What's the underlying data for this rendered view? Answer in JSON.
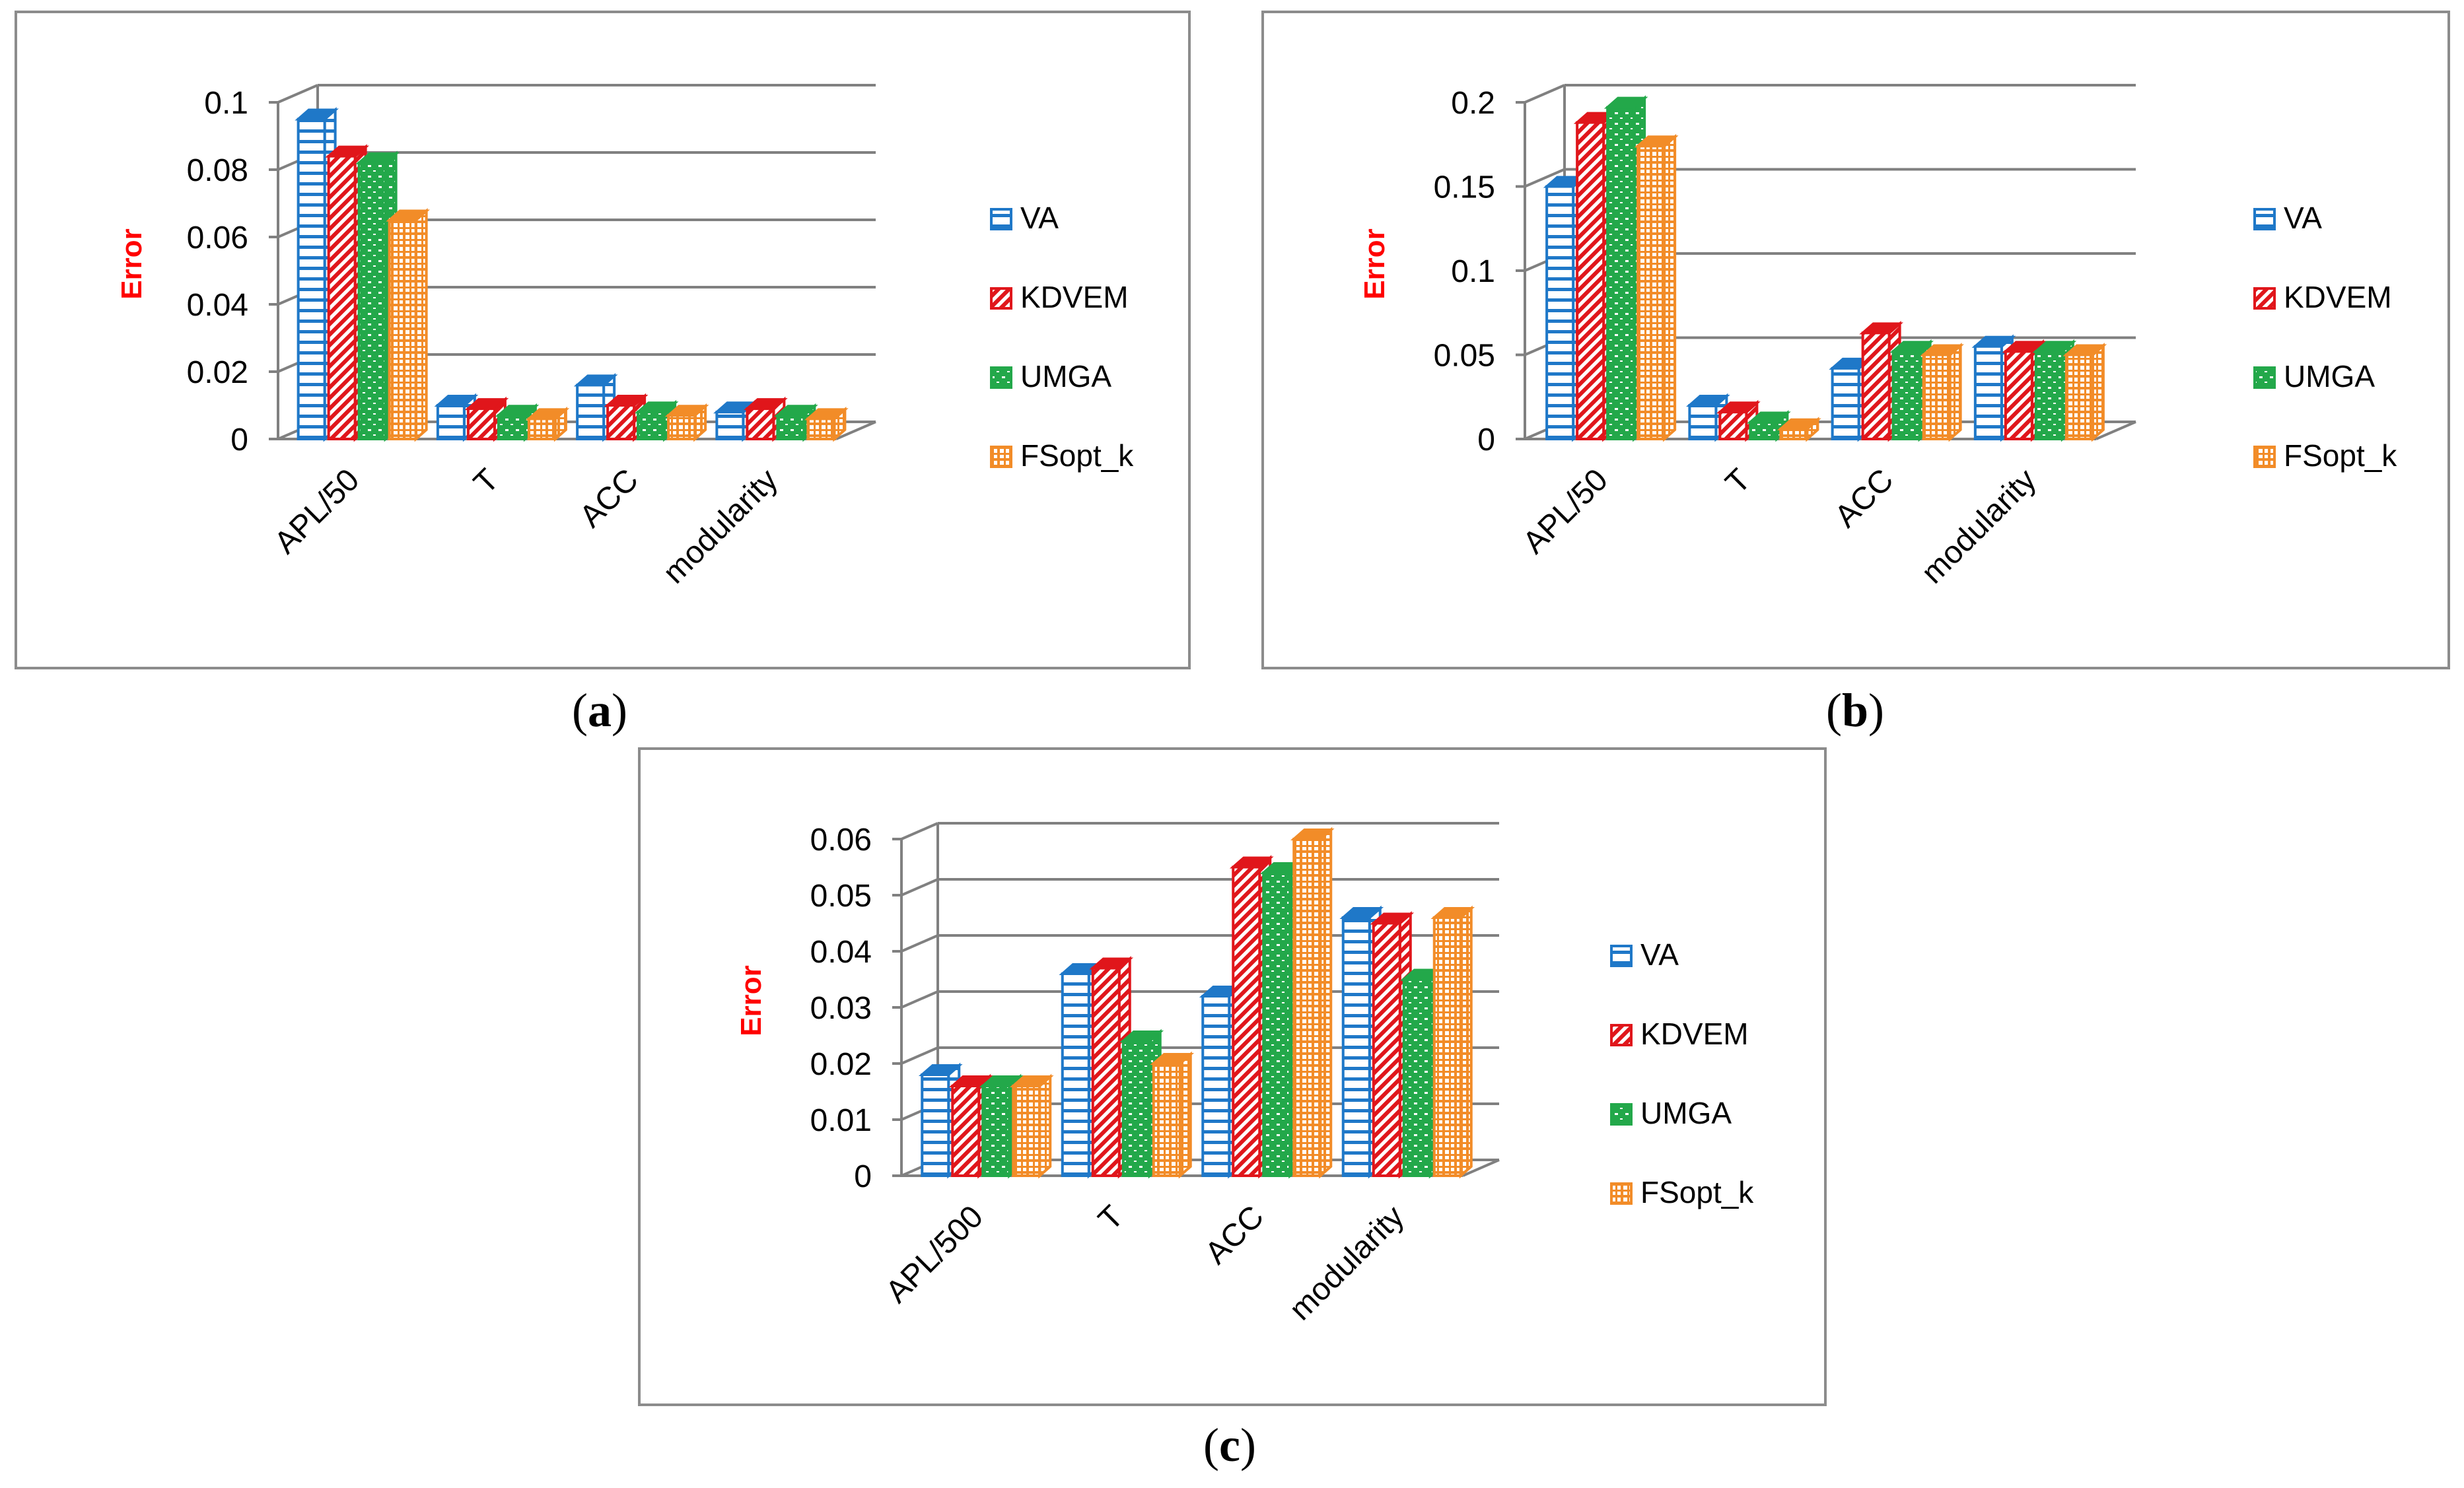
{
  "colors": {
    "VA": "#1f78c8",
    "KDVEM": "#e0161b",
    "UMGA": "#23a84a",
    "FSopt_k": "#f28c28",
    "axis_title": "#ff0000",
    "grid": "#808080",
    "frame": "#8c8c8c"
  },
  "legend": [
    {
      "name": "VA",
      "pattern": "h-lines"
    },
    {
      "name": "KDVEM",
      "pattern": "diagonal"
    },
    {
      "name": "UMGA",
      "pattern": "dots"
    },
    {
      "name": "FSopt_k",
      "pattern": "grid"
    }
  ],
  "panels": {
    "a": {
      "open": "(",
      "letter": "a",
      "close": ")"
    },
    "b": {
      "open": "(",
      "letter": "b",
      "close": ")"
    },
    "c": {
      "open": "(",
      "letter": "c",
      "close": ")"
    }
  },
  "chart_data": [
    {
      "id": "a",
      "type": "bar",
      "style": "3d-clustered-column",
      "ylabel": "Error",
      "ylim": [
        0,
        0.1
      ],
      "yticks": [
        "0",
        "0.02",
        "0.04",
        "0.06",
        "0.08",
        "0.1"
      ],
      "grid": true,
      "legend_position": "right",
      "categories": [
        "APL/50",
        "T",
        "ACC",
        "modularity"
      ],
      "series": [
        {
          "name": "VA",
          "values": [
            0.095,
            0.01,
            0.016,
            0.008
          ]
        },
        {
          "name": "KDVEM",
          "values": [
            0.084,
            0.009,
            0.01,
            0.009
          ]
        },
        {
          "name": "UMGA",
          "values": [
            0.082,
            0.007,
            0.008,
            0.007
          ]
        },
        {
          "name": "FSopt_k",
          "values": [
            0.065,
            0.006,
            0.007,
            0.006
          ]
        }
      ]
    },
    {
      "id": "b",
      "type": "bar",
      "style": "3d-clustered-column",
      "ylabel": "Error",
      "ylim": [
        0,
        0.2
      ],
      "yticks": [
        "0",
        "0.05",
        "0.1",
        "0.15",
        "0.2"
      ],
      "grid": true,
      "legend_position": "right",
      "categories": [
        "APL/50",
        "T",
        "ACC",
        "modularity"
      ],
      "series": [
        {
          "name": "VA",
          "values": [
            0.15,
            0.02,
            0.042,
            0.055
          ]
        },
        {
          "name": "KDVEM",
          "values": [
            0.188,
            0.016,
            0.063,
            0.052
          ]
        },
        {
          "name": "UMGA",
          "values": [
            0.197,
            0.01,
            0.052,
            0.052
          ]
        },
        {
          "name": "FSopt_k",
          "values": [
            0.174,
            0.006,
            0.05,
            0.05
          ]
        }
      ]
    },
    {
      "id": "c",
      "type": "bar",
      "style": "3d-clustered-column",
      "ylabel": "Error",
      "ylim": [
        0,
        0.06
      ],
      "yticks": [
        "0",
        "0.01",
        "0.02",
        "0.03",
        "0.04",
        "0.05",
        "0.06"
      ],
      "grid": true,
      "legend_position": "right",
      "categories": [
        "APL/500",
        "T",
        "ACC",
        "modularity"
      ],
      "series": [
        {
          "name": "VA",
          "values": [
            0.018,
            0.036,
            0.032,
            0.046
          ]
        },
        {
          "name": "KDVEM",
          "values": [
            0.016,
            0.037,
            0.055,
            0.045
          ]
        },
        {
          "name": "UMGA",
          "values": [
            0.016,
            0.024,
            0.054,
            0.035
          ]
        },
        {
          "name": "FSopt_k",
          "values": [
            0.016,
            0.02,
            0.06,
            0.046
          ]
        }
      ]
    }
  ]
}
